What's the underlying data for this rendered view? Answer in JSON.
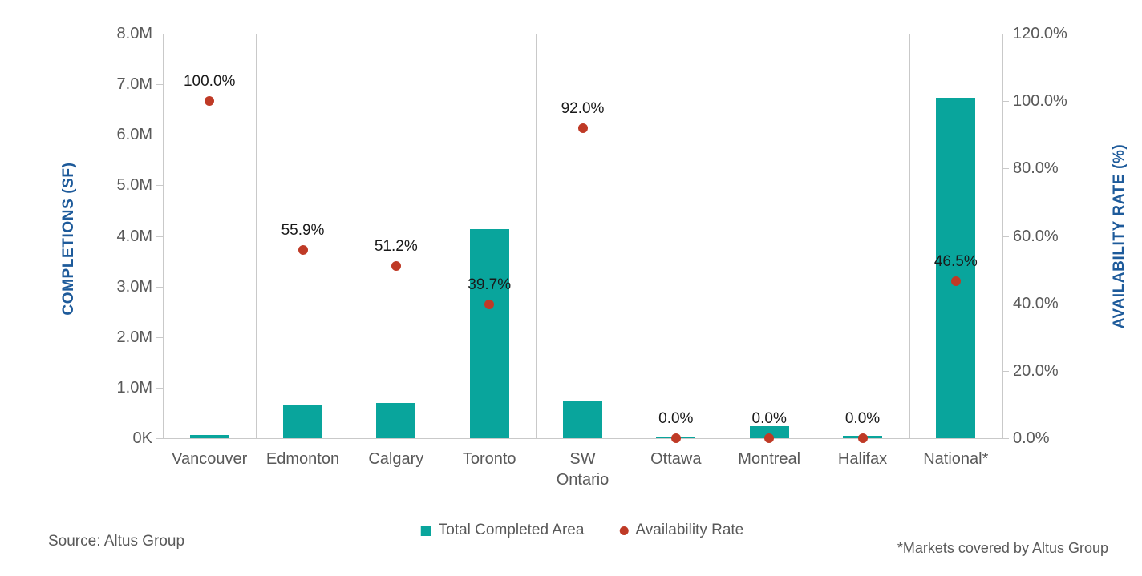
{
  "chart_data": {
    "type": "bar",
    "subtype": "combo-bar-scatter-dual-axis",
    "title": "",
    "categories": [
      "Vancouver",
      "Edmonton",
      "Calgary",
      "Toronto",
      "SW\nOntario",
      "Ottawa",
      "Montreal",
      "Halifax",
      "National*"
    ],
    "series": [
      {
        "name": "Total Completed Area",
        "type": "bar",
        "axis": "left",
        "unit": "SF (millions)",
        "values": [
          0.07,
          0.66,
          0.69,
          4.14,
          0.75,
          0.03,
          0.24,
          0.05,
          6.73
        ],
        "color": "#09a59c"
      },
      {
        "name": "Availability Rate",
        "type": "scatter",
        "axis": "right",
        "unit": "%",
        "values": [
          100.0,
          55.9,
          51.2,
          39.7,
          92.0,
          0.0,
          0.0,
          0.0,
          46.5
        ],
        "labels": [
          "100.0%",
          "55.9%",
          "51.2%",
          "39.7%",
          "92.0%",
          "0.0%",
          "0.0%",
          "0.0%",
          "46.5%"
        ],
        "color": "#bf3a26"
      }
    ],
    "left_axis": {
      "title": "COMPLETIONS (SF)",
      "min": 0,
      "max": 8000000,
      "tick_labels": [
        "8.0M",
        "7.0M",
        "6.0M",
        "5.0M",
        "4.0M",
        "3.0M",
        "2.0M",
        "1.0M",
        "0K"
      ]
    },
    "right_axis": {
      "title": "AVAILABILITY RATE (%)",
      "min": 0,
      "max": 120,
      "tick_labels": [
        "120.0%",
        "100.0%",
        "80.0%",
        "60.0%",
        "40.0%",
        "20.0%",
        "0.0%"
      ]
    },
    "legend": [
      {
        "label": "Total Completed Area",
        "marker": "square",
        "color": "#09a59c"
      },
      {
        "label": "Availability Rate",
        "marker": "dot",
        "color": "#bf3a26"
      }
    ],
    "legend_position": "bottom",
    "grid": "vertical-category-separators-only"
  },
  "source": {
    "text": "Source: Altus Group"
  },
  "footnote": {
    "text": "*Markets covered by Altus Group"
  },
  "colors": {
    "bar_teal": "#09a59c",
    "dot_red": "#bf3a26",
    "axis_title_blue": "#1d5a9a",
    "tick_text_gray": "#595959",
    "gridline_gray": "#c9c9c9",
    "data_label_black": "#1a1a1a"
  }
}
